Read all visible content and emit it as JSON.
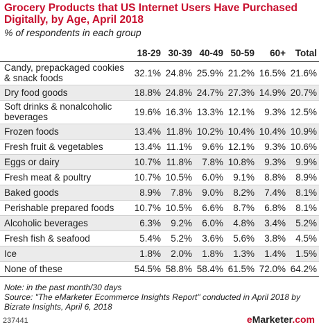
{
  "title": "Grocery Products that US Internet Users Have Purchased Digitally, by Age, April 2018",
  "subtitle": "% of respondents in each group",
  "chart_data": {
    "type": "table",
    "columns": [
      "18-29",
      "30-39",
      "40-49",
      "50-59",
      "60+",
      "Total"
    ],
    "rows": [
      {
        "label": "Candy, prepackaged cookies & snack foods",
        "values": [
          "32.1%",
          "24.8%",
          "25.9%",
          "21.2%",
          "16.5%",
          "21.6%"
        ]
      },
      {
        "label": "Dry food goods",
        "values": [
          "18.8%",
          "24.8%",
          "24.7%",
          "27.3%",
          "14.9%",
          "20.7%"
        ]
      },
      {
        "label": "Soft drinks & nonalcoholic beverages",
        "values": [
          "19.6%",
          "16.3%",
          "13.3%",
          "12.1%",
          "9.3%",
          "12.5%"
        ]
      },
      {
        "label": "Frozen foods",
        "values": [
          "13.4%",
          "11.8%",
          "10.2%",
          "10.4%",
          "10.4%",
          "10.9%"
        ]
      },
      {
        "label": "Fresh fruit & vegetables",
        "values": [
          "13.4%",
          "11.1%",
          "9.6%",
          "12.1%",
          "9.3%",
          "10.6%"
        ]
      },
      {
        "label": "Eggs or dairy",
        "values": [
          "10.7%",
          "11.8%",
          "7.8%",
          "10.8%",
          "9.3%",
          "9.9%"
        ]
      },
      {
        "label": "Fresh meat & poultry",
        "values": [
          "10.7%",
          "10.5%",
          "6.0%",
          "9.1%",
          "8.8%",
          "8.9%"
        ]
      },
      {
        "label": "Baked goods",
        "values": [
          "8.9%",
          "7.8%",
          "9.0%",
          "8.2%",
          "7.4%",
          "8.1%"
        ]
      },
      {
        "label": "Perishable prepared foods",
        "values": [
          "10.7%",
          "10.5%",
          "6.6%",
          "8.7%",
          "6.8%",
          "8.1%"
        ]
      },
      {
        "label": "Alcoholic beverages",
        "values": [
          "6.3%",
          "9.2%",
          "6.0%",
          "4.8%",
          "3.4%",
          "5.2%"
        ]
      },
      {
        "label": "Fresh fish & seafood",
        "values": [
          "5.4%",
          "5.2%",
          "3.6%",
          "5.6%",
          "3.8%",
          "4.5%"
        ]
      },
      {
        "label": "Ice",
        "values": [
          "1.8%",
          "2.0%",
          "1.8%",
          "1.3%",
          "1.4%",
          "1.5%"
        ]
      },
      {
        "label": "None of these",
        "values": [
          "54.5%",
          "58.8%",
          "58.4%",
          "61.5%",
          "72.0%",
          "64.2%"
        ]
      }
    ]
  },
  "note": "Note: in the past month/30 days",
  "source": "Source: \"The eMarketer Ecommerce Insights Report\" conducted in April 2018 by Bizrate Insights, April 6, 2018",
  "chart_id": "237441",
  "logo": {
    "prefix": "e",
    "name": "Marketer",
    "suffix": ".com"
  },
  "colors": {
    "title": "#c8102e",
    "stripe": "#ebebeb"
  }
}
